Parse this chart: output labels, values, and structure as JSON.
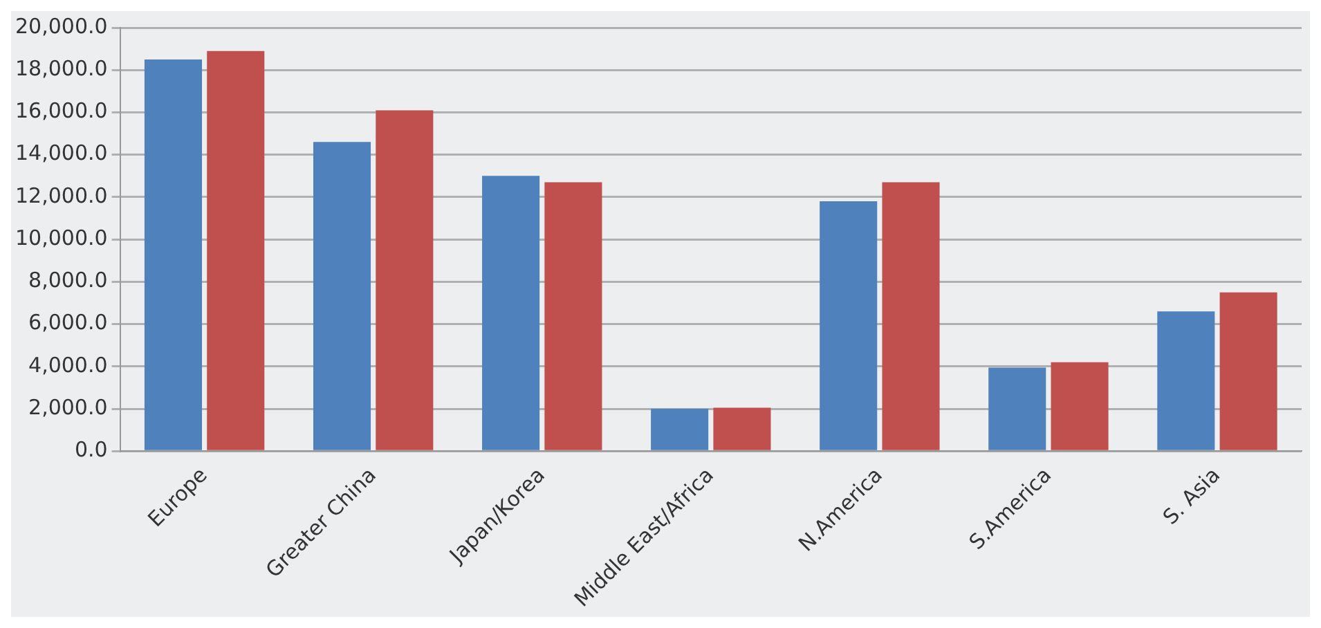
{
  "chart_data": {
    "type": "bar",
    "categories": [
      "Europe",
      "Greater China",
      "Japan/Korea",
      "Middle East/Africa",
      "N.America",
      "S.America",
      "S. Asia"
    ],
    "series": [
      {
        "color": "#4f81bd",
        "values": [
          18500,
          14600,
          13000,
          2000,
          11800,
          3950,
          6600
        ]
      },
      {
        "color": "#c0504d",
        "values": [
          18900,
          16100,
          12700,
          2050,
          12700,
          4200,
          7500
        ]
      }
    ],
    "ylim": [
      0,
      20000
    ],
    "yticks": [
      {
        "value": 0,
        "label": "0.0"
      },
      {
        "value": 2000,
        "label": "2,000.0"
      },
      {
        "value": 4000,
        "label": "4,000.0"
      },
      {
        "value": 6000,
        "label": "6,000.0"
      },
      {
        "value": 8000,
        "label": "8,000.0"
      },
      {
        "value": 10000,
        "label": "10,000.0"
      },
      {
        "value": 12000,
        "label": "12,000.0"
      },
      {
        "value": 14000,
        "label": "14,000.0"
      },
      {
        "value": 16000,
        "label": "16,000.0"
      },
      {
        "value": 18000,
        "label": "18,000.0"
      },
      {
        "value": 20000,
        "label": "20,000.0"
      }
    ],
    "grid": "y",
    "legend": false
  }
}
